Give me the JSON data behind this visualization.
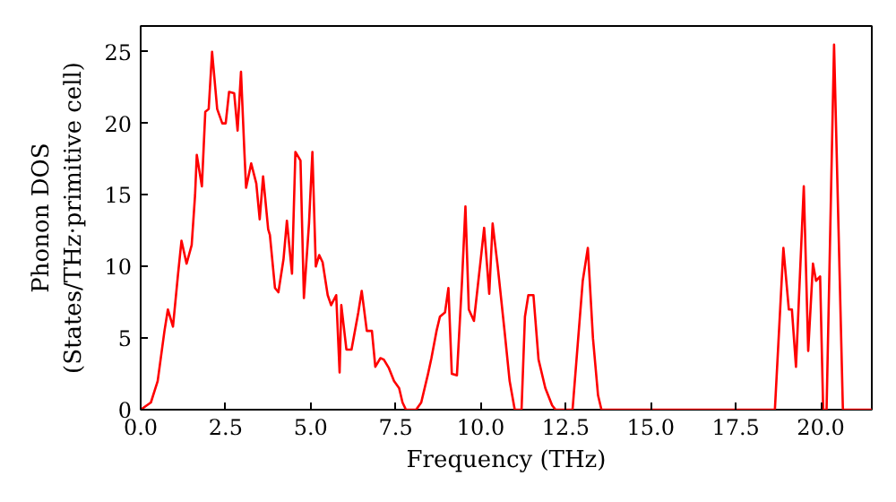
{
  "chart_data": {
    "type": "line",
    "xlabel": "Frequency (THz)",
    "ylabel": "Phonon DOS\n(States/THz·primitive cell)",
    "xlim": [
      0,
      21.5
    ],
    "ylim": [
      0,
      26.8
    ],
    "xticks": [
      {
        "value": 0,
        "label": "0.0"
      },
      {
        "value": 2.5,
        "label": "2.5"
      },
      {
        "value": 5,
        "label": "5.0"
      },
      {
        "value": 7.5,
        "label": "7.5"
      },
      {
        "value": 10,
        "label": "10.0"
      },
      {
        "value": 12.5,
        "label": "12.5"
      },
      {
        "value": 15,
        "label": "15.0"
      },
      {
        "value": 17.5,
        "label": "17.5"
      },
      {
        "value": 20,
        "label": "20.0"
      }
    ],
    "yticks": [
      0,
      5,
      10,
      15,
      20,
      25
    ],
    "grid": false,
    "series": [
      {
        "color": "#ff0000",
        "x": [
          0.0,
          0.3,
          0.5,
          0.7,
          0.8,
          0.95,
          1.1,
          1.2,
          1.35,
          1.5,
          1.6,
          1.65,
          1.8,
          1.9,
          2.0,
          2.1,
          2.25,
          2.4,
          2.5,
          2.6,
          2.75,
          2.85,
          2.95,
          3.05,
          3.1,
          3.25,
          3.4,
          3.5,
          3.6,
          3.75,
          3.8,
          3.95,
          4.05,
          4.2,
          4.3,
          4.45,
          4.55,
          4.7,
          4.8,
          4.95,
          5.05,
          5.15,
          5.25,
          5.35,
          5.5,
          5.6,
          5.75,
          5.85,
          5.9,
          6.05,
          6.2,
          6.4,
          6.5,
          6.65,
          6.8,
          6.9,
          7.05,
          7.15,
          7.3,
          7.45,
          7.6,
          7.7,
          7.8,
          8.1,
          8.25,
          8.45,
          8.55,
          8.7,
          8.8,
          8.95,
          9.05,
          9.15,
          9.3,
          9.45,
          9.55,
          9.65,
          9.8,
          10.0,
          10.1,
          10.25,
          10.35,
          10.5,
          10.7,
          10.85,
          11.0,
          11.2,
          11.3,
          11.4,
          11.55,
          11.7,
          11.9,
          12.1,
          12.2,
          12.7,
          12.9,
          13.0,
          13.15,
          13.3,
          13.45,
          13.55,
          18.65,
          18.9,
          19.06,
          19.15,
          19.27,
          19.5,
          19.63,
          19.77,
          19.86,
          19.98,
          20.07,
          20.17,
          20.39,
          20.65,
          21.5
        ],
        "values": [
          0,
          0.5,
          2,
          5.5,
          7,
          5.8,
          9.5,
          11.8,
          10.2,
          11.5,
          15,
          17.8,
          15.6,
          20.8,
          21,
          25,
          21,
          20,
          20,
          22.2,
          22.1,
          19.5,
          23.6,
          18,
          15.5,
          17.2,
          15.8,
          13.3,
          16.3,
          12.6,
          12.2,
          8.5,
          8.2,
          10.5,
          13.2,
          9.5,
          18,
          17.4,
          7.8,
          13,
          18,
          10,
          10.8,
          10.3,
          8,
          7.3,
          8,
          2.6,
          7.3,
          4.2,
          4.2,
          6.8,
          8.3,
          5.5,
          5.5,
          3,
          3.6,
          3.5,
          2.9,
          2,
          1.5,
          0.5,
          0,
          0,
          0.5,
          2.5,
          3.6,
          5.5,
          6.5,
          6.8,
          8.5,
          2.5,
          2.4,
          9,
          14.2,
          7,
          6.2,
          10.5,
          12.7,
          8.1,
          13,
          10,
          5.5,
          2,
          0,
          0,
          6.5,
          8,
          8,
          3.5,
          1.5,
          0.3,
          0,
          0,
          6,
          9,
          11.3,
          5,
          1,
          0,
          0,
          11.3,
          7,
          7,
          3,
          15.6,
          4.1,
          10.2,
          9,
          9.3,
          0,
          0,
          25.5,
          0,
          0
        ]
      }
    ]
  }
}
